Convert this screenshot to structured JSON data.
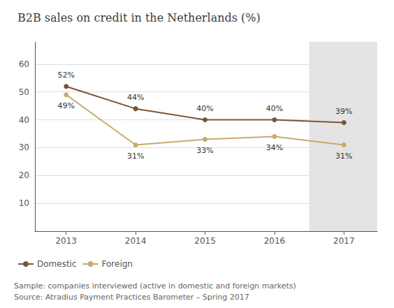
{
  "chart_data": {
    "type": "line",
    "title": "B2B sales on credit in the Netherlands (%)",
    "x": [
      2013,
      2014,
      2015,
      2016,
      2017
    ],
    "series": [
      {
        "name": "Domestic",
        "color": "#7B5533",
        "values": [
          52,
          44,
          40,
          40,
          39
        ],
        "value_labels": [
          "52%",
          "44%",
          "40%",
          "40%",
          "39%"
        ]
      },
      {
        "name": "Foreign",
        "color": "#C9A96E",
        "values": [
          49,
          31,
          33,
          34,
          31
        ],
        "value_labels": [
          "49%",
          "31%",
          "33%",
          "34%",
          "31%"
        ]
      }
    ],
    "xlim": [
      2012.55,
      2017.48
    ],
    "xticks": [
      2013,
      2014,
      2015,
      2016,
      2017
    ],
    "ylim": [
      0,
      68
    ],
    "yticks": [
      10,
      20,
      30,
      40,
      50,
      60
    ],
    "grid": true,
    "legend": "bottom",
    "marker": "circle",
    "data_labels": true,
    "shaded": {
      "x": [
        2016.5,
        2017.48
      ],
      "color": "#E4E4E4"
    },
    "footnotes": [
      "Sample: companies interviewed (active in domestic and foreign markets)",
      "Source: Atradius Payment Practices Barometer – Spring 2017"
    ]
  }
}
